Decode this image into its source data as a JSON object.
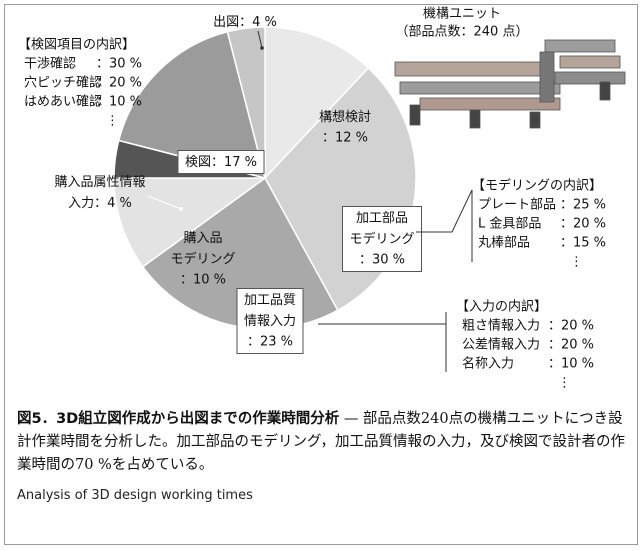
{
  "chart_data": {
    "type": "pie",
    "categories": [
      [
        "構想検討"
      ],
      [
        "加工部品",
        "モデリング"
      ],
      [
        "加工品質",
        "情報入力"
      ],
      [
        "購入品",
        "モデリング"
      ],
      [
        "購入品属性情報",
        "入力"
      ],
      [
        "検図"
      ],
      [
        "出図"
      ]
    ],
    "values": [
      12,
      30,
      23,
      10,
      4,
      17,
      4
    ],
    "value_labels": [
      "：12 %",
      "：30 %",
      "：23 %",
      "：10 %",
      "：4 %",
      "：17 %",
      "：4 %"
    ],
    "colors": [
      "#e9e9e9",
      "#d2d2d2",
      "#a9a9a9",
      "#e3e3e3",
      "#555555",
      "#9b9b9b",
      "#c6c6c6"
    ],
    "annotations": {
      "unit": [
        "機構ユニット",
        "（部品点数：240 点）"
      ],
      "inspection": {
        "title": "【検図項目の内訳】",
        "items": [
          {
            "label": "干渉確認",
            "value_label": "：30 %"
          },
          {
            "label": "穴ピッチ確認",
            "value_label": "：20 %"
          },
          {
            "label": "はめあい確認",
            "value_label": "：10 %"
          }
        ],
        "more": "⋮"
      },
      "modeling": {
        "title": "【モデリングの内訳】",
        "items": [
          {
            "label": "プレート部品",
            "value_label": "：25 %"
          },
          {
            "label": "L 金具部品",
            "value_label": "：20 %"
          },
          {
            "label": "丸棒部品",
            "value_label": "：15 %"
          }
        ],
        "more": "⋮"
      },
      "input": {
        "title": "【入力の内訳】",
        "items": [
          {
            "label": "粗さ情報入力",
            "value_label": "：20 %"
          },
          {
            "label": "公差情報入力",
            "value_label": "：20 %"
          },
          {
            "label": "名称入力",
            "value_label": "：10 %"
          }
        ],
        "more": "⋮"
      }
    }
  },
  "caption": {
    "title": "図5．3D組立図作成から出図までの作業時間分析",
    "text": " — 部品点数240点の機構ユニットにつき設計作業時間を分析した。加工部品のモデリング，加工品質情報の入力，及び検図で設計者の作業時間の70 %を占めている。",
    "english": "Analysis of 3D design working times"
  }
}
